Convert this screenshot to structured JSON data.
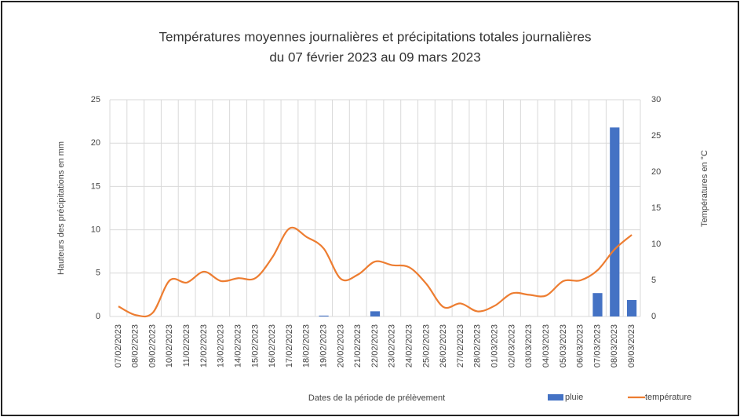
{
  "chart_data": {
    "type": "bar_line",
    "title": [
      "Températures moyennes journalières et précipitations totales journalières",
      "du 07 février 2023 au 09 mars 2023"
    ],
    "x_label": "Dates de la période de prélèvement",
    "y_label": "Hauteurs des précipitations en mm",
    "y2_label": "Températures en °C",
    "categories": [
      "07/02/2023",
      "08/02/2023",
      "09/02/2023",
      "10/02/2023",
      "11/02/2023",
      "12/02/2023",
      "13/02/2023",
      "14/02/2023",
      "15/02/2023",
      "16/02/2023",
      "17/02/2023",
      "18/02/2023",
      "19/02/2023",
      "20/02/2023",
      "21/02/2023",
      "22/02/2023",
      "23/02/2023",
      "24/02/2023",
      "25/02/2023",
      "26/02/2023",
      "27/02/2023",
      "28/02/2023",
      "01/03/2023",
      "02/03/2023",
      "03/03/2023",
      "04/03/2023",
      "05/03/2023",
      "06/03/2023",
      "07/03/2023",
      "08/03/2023",
      "09/03/2023"
    ],
    "series": [
      {
        "name": "pluie",
        "color": "#4472c4",
        "kind": "bar",
        "values": [
          0,
          0,
          0,
          0,
          0,
          0,
          0,
          0,
          0,
          0,
          0,
          0,
          0.1,
          0,
          0,
          0.6,
          0,
          0,
          0,
          0,
          0,
          0,
          0,
          0,
          0,
          0,
          0,
          0,
          2.7,
          21.8,
          1.9
        ]
      },
      {
        "name": "température",
        "color": "#ed7d31",
        "kind": "line",
        "axis": "y2",
        "values": [
          1.4,
          0.2,
          0.5,
          5.0,
          4.7,
          6.2,
          4.9,
          5.3,
          5.3,
          8.2,
          12.2,
          11.0,
          9.4,
          5.2,
          5.8,
          7.6,
          7.1,
          6.8,
          4.5,
          1.3,
          1.8,
          0.7,
          1.5,
          3.2,
          3.0,
          2.9,
          4.9,
          5.0,
          6.4,
          9.3,
          11.3
        ]
      }
    ],
    "ylim": [
      0,
      25
    ],
    "yticks": [
      0,
      5,
      10,
      15,
      20,
      25
    ],
    "y2lim": [
      0,
      30
    ],
    "y2ticks": [
      0,
      5,
      10,
      15,
      20,
      25,
      30
    ],
    "grid": true,
    "legend": "bottom-right"
  }
}
